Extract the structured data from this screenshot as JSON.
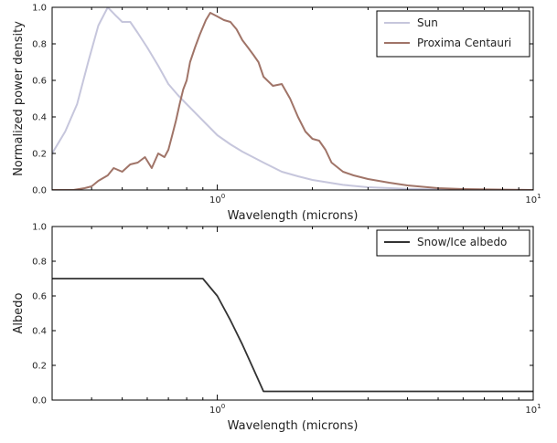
{
  "chart_data": [
    {
      "type": "line",
      "xlabel": "Wavelength (microns)",
      "ylabel": "Normalized power density",
      "xscale": "log",
      "xlim": [
        0.3,
        10
      ],
      "ylim": [
        0.0,
        1.0
      ],
      "xticks": [
        {
          "value": 1,
          "base": "10",
          "exp": "0"
        },
        {
          "value": 10,
          "base": "10",
          "exp": "1"
        }
      ],
      "yticks": [
        "0.0",
        "0.2",
        "0.4",
        "0.6",
        "0.8",
        "1.0"
      ],
      "grid": false,
      "legend_position": "top-right",
      "series": [
        {
          "name": "Sun",
          "color": "#c6c6dc",
          "x": [
            0.3,
            0.33,
            0.36,
            0.39,
            0.42,
            0.45,
            0.48,
            0.5,
            0.53,
            0.56,
            0.6,
            0.65,
            0.7,
            0.75,
            0.8,
            0.9,
            1.0,
            1.1,
            1.2,
            1.4,
            1.6,
            1.8,
            2.0,
            2.5,
            3.0,
            4.0,
            5.0,
            7.0,
            10.0
          ],
          "y": [
            0.2,
            0.32,
            0.47,
            0.7,
            0.9,
            1.0,
            0.95,
            0.92,
            0.92,
            0.86,
            0.78,
            0.68,
            0.58,
            0.52,
            0.47,
            0.38,
            0.3,
            0.25,
            0.21,
            0.15,
            0.1,
            0.075,
            0.055,
            0.028,
            0.015,
            0.006,
            0.003,
            0.001,
            0.0
          ]
        },
        {
          "name": "Proxima Centauri",
          "color": "#a07468",
          "x": [
            0.3,
            0.35,
            0.38,
            0.4,
            0.42,
            0.45,
            0.47,
            0.5,
            0.53,
            0.56,
            0.59,
            0.62,
            0.65,
            0.68,
            0.7,
            0.72,
            0.74,
            0.76,
            0.78,
            0.8,
            0.82,
            0.85,
            0.88,
            0.92,
            0.95,
            1.0,
            1.05,
            1.1,
            1.15,
            1.2,
            1.25,
            1.3,
            1.35,
            1.4,
            1.5,
            1.6,
            1.7,
            1.8,
            1.9,
            2.0,
            2.1,
            2.2,
            2.3,
            2.5,
            2.7,
            3.0,
            3.5,
            4.0,
            5.0,
            6.0,
            8.0,
            10.0
          ],
          "y": [
            0.0,
            0.0,
            0.01,
            0.02,
            0.05,
            0.08,
            0.12,
            0.1,
            0.14,
            0.15,
            0.18,
            0.12,
            0.2,
            0.18,
            0.22,
            0.3,
            0.38,
            0.47,
            0.55,
            0.6,
            0.7,
            0.78,
            0.85,
            0.93,
            0.97,
            0.95,
            0.93,
            0.92,
            0.88,
            0.82,
            0.78,
            0.74,
            0.7,
            0.62,
            0.57,
            0.58,
            0.5,
            0.4,
            0.32,
            0.28,
            0.27,
            0.22,
            0.15,
            0.1,
            0.08,
            0.06,
            0.04,
            0.025,
            0.01,
            0.005,
            0.002,
            0.0
          ]
        }
      ]
    },
    {
      "type": "line",
      "xlabel": "Wavelength (microns)",
      "ylabel": "Albedo",
      "xscale": "log",
      "xlim": [
        0.3,
        10
      ],
      "ylim": [
        0.0,
        1.0
      ],
      "xticks": [
        {
          "value": 1,
          "base": "10",
          "exp": "0"
        },
        {
          "value": 10,
          "base": "10",
          "exp": "1"
        }
      ],
      "yticks": [
        "0.0",
        "0.2",
        "0.4",
        "0.6",
        "0.8",
        "1.0"
      ],
      "grid": false,
      "legend_position": "top-right",
      "series": [
        {
          "name": "Snow/Ice albedo",
          "color": "#333333",
          "x": [
            0.3,
            0.9,
            1.0,
            1.1,
            1.2,
            1.3,
            1.4,
            2.0,
            10.0
          ],
          "y": [
            0.7,
            0.7,
            0.6,
            0.46,
            0.32,
            0.18,
            0.05,
            0.05,
            0.05
          ]
        }
      ]
    }
  ]
}
